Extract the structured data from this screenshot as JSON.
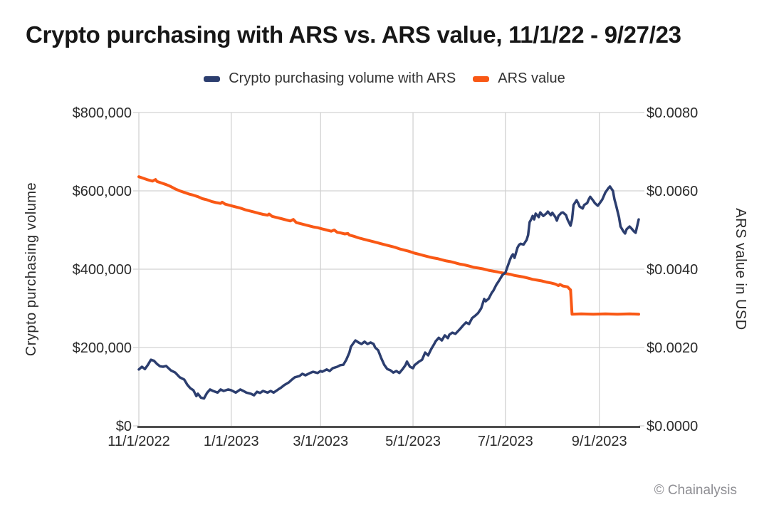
{
  "title": "Crypto purchasing with ARS vs. ARS value, 11/1/22 - 9/27/23",
  "legend": [
    {
      "label": "Crypto purchasing volume with ARS",
      "color": "#2c3e6f"
    },
    {
      "label": "ARS value",
      "color": "#f95815"
    }
  ],
  "footer": {
    "credit": "© Chainalysis"
  },
  "colors": {
    "crypto_volume_line": "#2c3e6f",
    "ars_value_line": "#f95815",
    "gridline": "#d2d2d2",
    "axis_line": "#4f4f4f",
    "tick_text": "#2b2b2b",
    "credit_text": "#8e8e93"
  },
  "chart_data": {
    "type": "line",
    "title": "Crypto purchasing with ARS vs. ARS value, 11/1/22 - 9/27/23",
    "x_unit": "days since 11/1/2022",
    "x_range": [
      0,
      330
    ],
    "grid": true,
    "legend_position": "top-center",
    "x_ticks": [
      {
        "day": 0,
        "label": "11/1/2022"
      },
      {
        "day": 61,
        "label": "1/1/2023"
      },
      {
        "day": 120,
        "label": "3/1/2023"
      },
      {
        "day": 181,
        "label": "5/1/2023"
      },
      {
        "day": 242,
        "label": "7/1/2023"
      },
      {
        "day": 304,
        "label": "9/1/2023"
      }
    ],
    "left_axis": {
      "title": "Crypto purchasing volume",
      "min": 0,
      "max": 800000,
      "ticks": [
        0,
        200000,
        400000,
        600000,
        800000
      ],
      "tick_labels": [
        "$0",
        "$200,000",
        "$400,000",
        "$600,000",
        "$800,000"
      ]
    },
    "right_axis": {
      "title": "ARS value in USD",
      "min": 0,
      "max": 0.008,
      "ticks": [
        0,
        0.002,
        0.004,
        0.006,
        0.008
      ],
      "tick_labels": [
        "$0.0000",
        "$0.0020",
        "$0.0040",
        "$0.0060",
        "$0.0080"
      ]
    },
    "series": [
      {
        "name": "Crypto purchasing volume with ARS",
        "axis": "left",
        "color": "#2c3e6f",
        "points": [
          [
            0,
            144000
          ],
          [
            2,
            151000
          ],
          [
            4,
            145000
          ],
          [
            6,
            156000
          ],
          [
            8,
            169000
          ],
          [
            10,
            166000
          ],
          [
            12,
            158000
          ],
          [
            14,
            152000
          ],
          [
            16,
            151000
          ],
          [
            18,
            153000
          ],
          [
            21,
            142000
          ],
          [
            24,
            136000
          ],
          [
            27,
            124000
          ],
          [
            30,
            118000
          ],
          [
            32,
            105000
          ],
          [
            34,
            96000
          ],
          [
            36,
            91000
          ],
          [
            38,
            76000
          ],
          [
            39,
            82000
          ],
          [
            41,
            72000
          ],
          [
            43,
            70000
          ],
          [
            45,
            84000
          ],
          [
            47,
            93000
          ],
          [
            49,
            89000
          ],
          [
            52,
            85000
          ],
          [
            54,
            93000
          ],
          [
            56,
            89000
          ],
          [
            59,
            93000
          ],
          [
            61,
            91000
          ],
          [
            64,
            85000
          ],
          [
            67,
            93000
          ],
          [
            69,
            89000
          ],
          [
            71,
            85000
          ],
          [
            74,
            82000
          ],
          [
            76,
            78000
          ],
          [
            78,
            87000
          ],
          [
            80,
            84000
          ],
          [
            82,
            89000
          ],
          [
            85,
            85000
          ],
          [
            87,
            89000
          ],
          [
            89,
            85000
          ],
          [
            92,
            93000
          ],
          [
            94,
            98000
          ],
          [
            96,
            104000
          ],
          [
            99,
            111000
          ],
          [
            101,
            118000
          ],
          [
            103,
            124000
          ],
          [
            106,
            127000
          ],
          [
            108,
            133000
          ],
          [
            110,
            129000
          ],
          [
            113,
            135000
          ],
          [
            115,
            138000
          ],
          [
            118,
            135000
          ],
          [
            120,
            140000
          ],
          [
            121,
            138000
          ],
          [
            124,
            144000
          ],
          [
            126,
            140000
          ],
          [
            128,
            147000
          ],
          [
            131,
            151000
          ],
          [
            133,
            155000
          ],
          [
            135,
            156000
          ],
          [
            137,
            169000
          ],
          [
            139,
            187000
          ],
          [
            140,
            202000
          ],
          [
            142,
            213000
          ],
          [
            143,
            218000
          ],
          [
            145,
            213000
          ],
          [
            147,
            209000
          ],
          [
            149,
            215000
          ],
          [
            151,
            209000
          ],
          [
            153,
            213000
          ],
          [
            155,
            209000
          ],
          [
            156,
            200000
          ],
          [
            158,
            193000
          ],
          [
            160,
            173000
          ],
          [
            162,
            156000
          ],
          [
            164,
            145000
          ],
          [
            166,
            142000
          ],
          [
            168,
            136000
          ],
          [
            170,
            140000
          ],
          [
            172,
            135000
          ],
          [
            174,
            144000
          ],
          [
            176,
            155000
          ],
          [
            177,
            164000
          ],
          [
            179,
            151000
          ],
          [
            181,
            147000
          ],
          [
            182,
            155000
          ],
          [
            185,
            164000
          ],
          [
            187,
            169000
          ],
          [
            189,
            187000
          ],
          [
            191,
            180000
          ],
          [
            193,
            196000
          ],
          [
            195,
            209000
          ],
          [
            196,
            216000
          ],
          [
            198,
            225000
          ],
          [
            200,
            218000
          ],
          [
            202,
            231000
          ],
          [
            204,
            224000
          ],
          [
            205,
            233000
          ],
          [
            207,
            238000
          ],
          [
            209,
            235000
          ],
          [
            212,
            247000
          ],
          [
            214,
            256000
          ],
          [
            216,
            264000
          ],
          [
            218,
            260000
          ],
          [
            220,
            275000
          ],
          [
            222,
            281000
          ],
          [
            224,
            288000
          ],
          [
            226,
            300000
          ],
          [
            228,
            324000
          ],
          [
            229,
            318000
          ],
          [
            231,
            325000
          ],
          [
            233,
            340000
          ],
          [
            234,
            345000
          ],
          [
            236,
            360000
          ],
          [
            238,
            372000
          ],
          [
            240,
            385000
          ],
          [
            242,
            391000
          ],
          [
            243,
            402000
          ],
          [
            245,
            424000
          ],
          [
            246,
            433000
          ],
          [
            247,
            438000
          ],
          [
            248,
            429000
          ],
          [
            250,
            455000
          ],
          [
            251,
            462000
          ],
          [
            252,
            465000
          ],
          [
            254,
            463000
          ],
          [
            256,
            475000
          ],
          [
            257,
            487000
          ],
          [
            258,
            520000
          ],
          [
            259,
            527000
          ],
          [
            260,
            536000
          ],
          [
            261,
            527000
          ],
          [
            262,
            542000
          ],
          [
            264,
            533000
          ],
          [
            265,
            545000
          ],
          [
            267,
            536000
          ],
          [
            269,
            542000
          ],
          [
            270,
            547000
          ],
          [
            272,
            538000
          ],
          [
            273,
            544000
          ],
          [
            275,
            533000
          ],
          [
            276,
            524000
          ],
          [
            277,
            536000
          ],
          [
            279,
            544000
          ],
          [
            280,
            545000
          ],
          [
            282,
            538000
          ],
          [
            283,
            527000
          ],
          [
            285,
            511000
          ],
          [
            286,
            527000
          ],
          [
            287,
            564000
          ],
          [
            289,
            576000
          ],
          [
            290,
            569000
          ],
          [
            291,
            560000
          ],
          [
            293,
            555000
          ],
          [
            294,
            564000
          ],
          [
            296,
            569000
          ],
          [
            297,
            578000
          ],
          [
            298,
            585000
          ],
          [
            300,
            575000
          ],
          [
            301,
            569000
          ],
          [
            303,
            562000
          ],
          [
            304,
            567000
          ],
          [
            306,
            578000
          ],
          [
            307,
            587000
          ],
          [
            308,
            596000
          ],
          [
            310,
            607000
          ],
          [
            311,
            611000
          ],
          [
            313,
            600000
          ],
          [
            314,
            578000
          ],
          [
            315,
            564000
          ],
          [
            317,
            533000
          ],
          [
            318,
            509000
          ],
          [
            320,
            496000
          ],
          [
            321,
            491000
          ],
          [
            322,
            502000
          ],
          [
            324,
            509000
          ],
          [
            325,
            505000
          ],
          [
            327,
            496000
          ],
          [
            328,
            493000
          ],
          [
            330,
            527000
          ]
        ]
      },
      {
        "name": "ARS value",
        "axis": "right",
        "color": "#f95815",
        "points": [
          [
            0,
            0.00636
          ],
          [
            3,
            0.00632
          ],
          [
            6,
            0.00628
          ],
          [
            9,
            0.00625
          ],
          [
            11,
            0.00629
          ],
          [
            12,
            0.00624
          ],
          [
            15,
            0.0062
          ],
          [
            18,
            0.00616
          ],
          [
            21,
            0.00611
          ],
          [
            24,
            0.00605
          ],
          [
            27,
            0.006
          ],
          [
            30,
            0.00596
          ],
          [
            33,
            0.00592
          ],
          [
            36,
            0.00589
          ],
          [
            39,
            0.00585
          ],
          [
            42,
            0.0058
          ],
          [
            45,
            0.00577
          ],
          [
            48,
            0.00573
          ],
          [
            51,
            0.0057
          ],
          [
            54,
            0.00568
          ],
          [
            55,
            0.00571
          ],
          [
            57,
            0.00566
          ],
          [
            61,
            0.00562
          ],
          [
            64,
            0.00559
          ],
          [
            67,
            0.00556
          ],
          [
            70,
            0.00552
          ],
          [
            73,
            0.00549
          ],
          [
            76,
            0.00546
          ],
          [
            79,
            0.00543
          ],
          [
            82,
            0.0054
          ],
          [
            85,
            0.00538
          ],
          [
            86,
            0.00541
          ],
          [
            88,
            0.00535
          ],
          [
            91,
            0.00532
          ],
          [
            94,
            0.00529
          ],
          [
            97,
            0.00526
          ],
          [
            100,
            0.00523
          ],
          [
            102,
            0.00527
          ],
          [
            104,
            0.00519
          ],
          [
            107,
            0.00516
          ],
          [
            109,
            0.00514
          ],
          [
            112,
            0.00511
          ],
          [
            115,
            0.00508
          ],
          [
            118,
            0.00506
          ],
          [
            121,
            0.00503
          ],
          [
            124,
            0.005
          ],
          [
            127,
            0.00497
          ],
          [
            129,
            0.005
          ],
          [
            131,
            0.00494
          ],
          [
            133,
            0.00493
          ],
          [
            136,
            0.0049
          ],
          [
            138,
            0.00491
          ],
          [
            139,
            0.00487
          ],
          [
            142,
            0.00484
          ],
          [
            145,
            0.0048
          ],
          [
            148,
            0.00477
          ],
          [
            151,
            0.00474
          ],
          [
            154,
            0.00471
          ],
          [
            157,
            0.00468
          ],
          [
            160,
            0.00465
          ],
          [
            163,
            0.00462
          ],
          [
            166,
            0.00459
          ],
          [
            169,
            0.00456
          ],
          [
            172,
            0.00452
          ],
          [
            175,
            0.00449
          ],
          [
            178,
            0.00446
          ],
          [
            182,
            0.00441
          ],
          [
            185,
            0.00438
          ],
          [
            188,
            0.00435
          ],
          [
            191,
            0.00432
          ],
          [
            194,
            0.00429
          ],
          [
            197,
            0.00427
          ],
          [
            200,
            0.00424
          ],
          [
            203,
            0.00421
          ],
          [
            206,
            0.00419
          ],
          [
            209,
            0.00416
          ],
          [
            212,
            0.00413
          ],
          [
            215,
            0.00411
          ],
          [
            218,
            0.00408
          ],
          [
            221,
            0.00405
          ],
          [
            224,
            0.00403
          ],
          [
            227,
            0.00401
          ],
          [
            231,
            0.00397
          ],
          [
            234,
            0.00395
          ],
          [
            237,
            0.00393
          ],
          [
            242,
            0.00389
          ],
          [
            245,
            0.00387
          ],
          [
            248,
            0.00384
          ],
          [
            251,
            0.00382
          ],
          [
            254,
            0.0038
          ],
          [
            257,
            0.00377
          ],
          [
            260,
            0.00374
          ],
          [
            263,
            0.00372
          ],
          [
            266,
            0.0037
          ],
          [
            269,
            0.00367
          ],
          [
            272,
            0.00365
          ],
          [
            275,
            0.00362
          ],
          [
            277,
            0.00358
          ],
          [
            278,
            0.00361
          ],
          [
            280,
            0.00357
          ],
          [
            283,
            0.00355
          ],
          [
            284,
            0.00351
          ],
          [
            285,
            0.00347
          ],
          [
            286,
            0.00285
          ],
          [
            292,
            0.00286
          ],
          [
            300,
            0.00285
          ],
          [
            308,
            0.00286
          ],
          [
            316,
            0.00285
          ],
          [
            324,
            0.00286
          ],
          [
            330,
            0.00285
          ]
        ]
      }
    ]
  }
}
